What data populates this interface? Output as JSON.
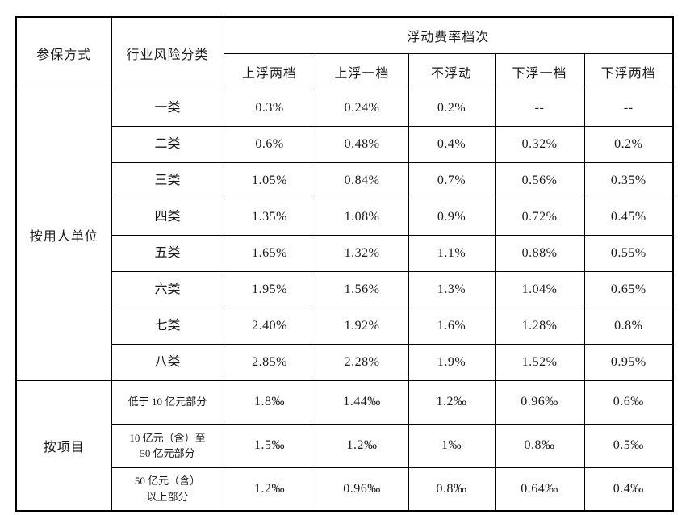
{
  "table": {
    "header": {
      "enroll_type": "参保方式",
      "risk_class": "行业风险分类",
      "group": "浮动费率档次",
      "tiers": [
        "上浮两档",
        "上浮一档",
        "不浮动",
        "下浮一档",
        "下浮两档"
      ]
    },
    "sections": [
      {
        "name": "按用人单位",
        "rows": [
          {
            "category": "一类",
            "values": [
              "0.3%",
              "0.24%",
              "0.2%",
              "--",
              "--"
            ]
          },
          {
            "category": "二类",
            "values": [
              "0.6%",
              "0.48%",
              "0.4%",
              "0.32%",
              "0.2%"
            ]
          },
          {
            "category": "三类",
            "values": [
              "1.05%",
              "0.84%",
              "0.7%",
              "0.56%",
              "0.35%"
            ]
          },
          {
            "category": "四类",
            "values": [
              "1.35%",
              "1.08%",
              "0.9%",
              "0.72%",
              "0.45%"
            ]
          },
          {
            "category": "五类",
            "values": [
              "1.65%",
              "1.32%",
              "1.1%",
              "0.88%",
              "0.55%"
            ]
          },
          {
            "category": "六类",
            "values": [
              "1.95%",
              "1.56%",
              "1.3%",
              "1.04%",
              "0.65%"
            ]
          },
          {
            "category": "七类",
            "values": [
              "2.40%",
              "1.92%",
              "1.6%",
              "1.28%",
              "0.8%"
            ]
          },
          {
            "category": "八类",
            "values": [
              "2.85%",
              "2.28%",
              "1.9%",
              "1.52%",
              "0.95%"
            ]
          }
        ]
      },
      {
        "name": "按项目",
        "rows": [
          {
            "category": "低于 10 亿元部分",
            "values": [
              "1.8‰",
              "1.44‰",
              "1.2‰",
              "0.96‰",
              "0.6‰"
            ]
          },
          {
            "category": "10 亿元（含）至\n50 亿元部分",
            "values": [
              "1.5‰",
              "1.2‰",
              "1‰",
              "0.8‰",
              "0.5‰"
            ]
          },
          {
            "category": "50 亿元（含）\n以上部分",
            "values": [
              "1.2‰",
              "0.96‰",
              "0.8‰",
              "0.64‰",
              "0.4‰"
            ]
          }
        ]
      }
    ],
    "colors": {
      "border": "#000000",
      "text": "#1a1a1a",
      "background": "#ffffff"
    }
  }
}
